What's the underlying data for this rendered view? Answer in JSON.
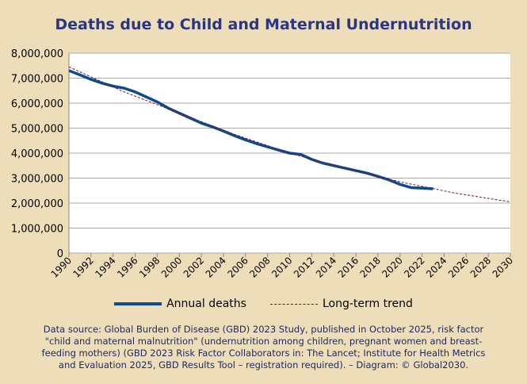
{
  "chart_data": {
    "type": "line",
    "title": "Deaths due to Child and Maternal Undernutrition",
    "xlim": [
      1990,
      2030
    ],
    "ylim": [
      0,
      8000000
    ],
    "grid": true,
    "legend_placement": "bottom",
    "x_ticks": [
      "1990",
      "1992",
      "1994",
      "1996",
      "1998",
      "2000",
      "2002",
      "2004",
      "2006",
      "2008",
      "2010",
      "2012",
      "2014",
      "2016",
      "2018",
      "2020",
      "2022",
      "2024",
      "2026",
      "2028",
      "2030"
    ],
    "y_ticks": [
      "0",
      "1,000,000",
      "2,000,000",
      "3,000,000",
      "4,000,000",
      "5,000,000",
      "6,000,000",
      "7,000,000",
      "8,000,000"
    ],
    "series": [
      {
        "name": "Annual deaths",
        "color": "#0d4a8e",
        "x": [
          1990,
          1991,
          1992,
          1993,
          1994,
          1995,
          1996,
          1997,
          1998,
          1999,
          2000,
          2001,
          2002,
          2003,
          2004,
          2005,
          2006,
          2007,
          2008,
          2009,
          2010,
          2011,
          2012,
          2013,
          2014,
          2015,
          2016,
          2017,
          2018,
          2019,
          2020,
          2021,
          2022,
          2023
        ],
        "values": [
          7300000,
          7130000,
          6950000,
          6800000,
          6680000,
          6600000,
          6450000,
          6250000,
          6050000,
          5800000,
          5600000,
          5400000,
          5200000,
          5050000,
          4880000,
          4700000,
          4530000,
          4380000,
          4250000,
          4120000,
          4000000,
          3950000,
          3750000,
          3600000,
          3500000,
          3400000,
          3300000,
          3200000,
          3070000,
          2930000,
          2750000,
          2620000,
          2600000,
          2570000
        ]
      },
      {
        "name": "Long-term trend",
        "color": "#7a1030",
        "style": "dashed",
        "x": [
          1990,
          1995,
          2000,
          2005,
          2010,
          2015,
          2020,
          2025,
          2030
        ],
        "values": [
          7450000,
          6450000,
          5600000,
          4750000,
          4000000,
          3400000,
          2850000,
          2400000,
          2050000
        ]
      }
    ]
  },
  "source": "Data source: Global Burden of Disease (GBD) 2023 Study, published in October 2025, risk factor \"child and maternal malnutrition\" (undernutrition among children, pregnant women and breast-feeding mothers) (GBD 2023 Risk Factor Collaborators in: The Lancet; Institute for Health Metrics and Evaluation 2025, GBD Results Tool – registration required). – Diagram: © Global2030."
}
